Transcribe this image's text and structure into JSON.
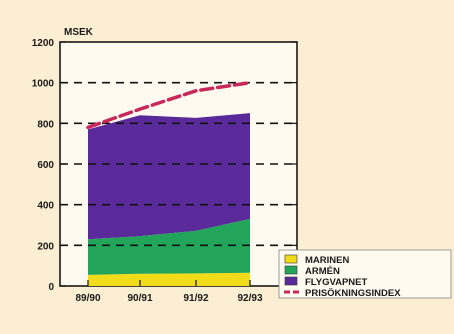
{
  "chart_data": {
    "type": "area",
    "stacked": true,
    "ylabel": "MSEK",
    "ylim": [
      0,
      1200
    ],
    "yticks": [
      0,
      200,
      400,
      600,
      800,
      1000,
      1200
    ],
    "categories": [
      "89/90",
      "90/91",
      "91/92",
      "92/93"
    ],
    "grid": "dashed horizontal lines at 200-unit intervals from 200 to 1000",
    "legend_position": "bottom-right",
    "series": [
      {
        "name": "MARINEN",
        "kind": "area",
        "color": "#f2dc1a",
        "values": [
          55,
          60,
          62,
          65
        ]
      },
      {
        "name": "ARMÉN",
        "kind": "area",
        "color": "#22a55a",
        "values": [
          175,
          185,
          210,
          265
        ]
      },
      {
        "name": "FLYGVAPNET",
        "kind": "area",
        "color": "#5a2a9a",
        "values": [
          540,
          595,
          555,
          520
        ]
      },
      {
        "name": "PRISÖKNINGSINDEX",
        "kind": "line",
        "color": "#c8285a",
        "style": "dashed",
        "values": [
          780,
          870,
          960,
          1000
        ]
      }
    ]
  }
}
